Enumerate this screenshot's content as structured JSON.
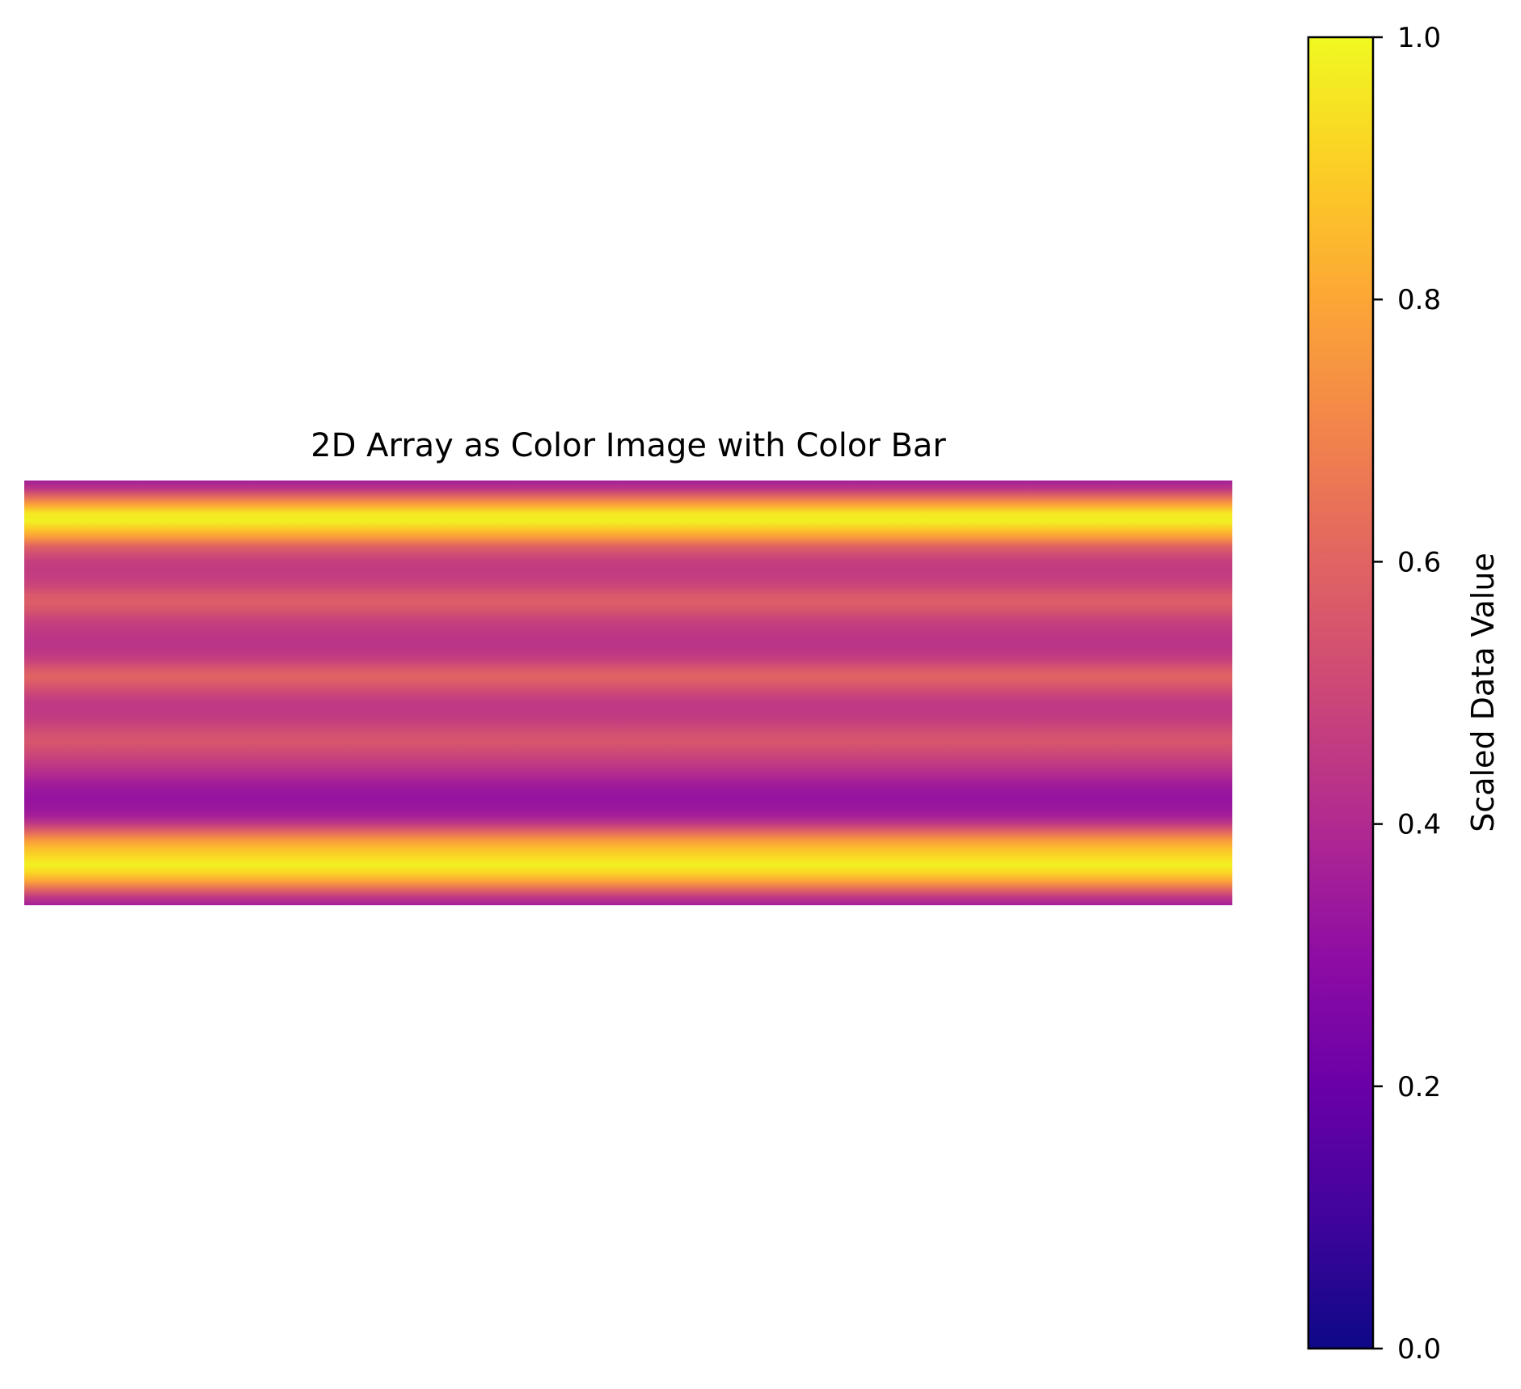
{
  "chart_data": {
    "type": "heatmap",
    "title": "2D Array as Color Image with Color Bar",
    "colormap": "plasma",
    "colormap_stops": [
      {
        "value": 0.0,
        "color": "#0d0887"
      },
      {
        "value": 0.1,
        "color": "#41049d"
      },
      {
        "value": 0.2,
        "color": "#6a00a8"
      },
      {
        "value": 0.3,
        "color": "#8f0da4"
      },
      {
        "value": 0.4,
        "color": "#b12a90"
      },
      {
        "value": 0.5,
        "color": "#cc4778"
      },
      {
        "value": 0.6,
        "color": "#e16462"
      },
      {
        "value": 0.7,
        "color": "#f2844b"
      },
      {
        "value": 0.8,
        "color": "#fca636"
      },
      {
        "value": 0.9,
        "color": "#fcce25"
      },
      {
        "value": 1.0,
        "color": "#f0f921"
      }
    ],
    "value_range": [
      0,
      1
    ],
    "row_values": [
      0.36,
      0.44,
      0.62,
      0.8,
      0.96,
      0.98,
      0.88,
      0.76,
      0.6,
      0.52,
      0.47,
      0.46,
      0.47,
      0.5,
      0.56,
      0.58,
      0.54,
      0.49,
      0.46,
      0.44,
      0.43,
      0.44,
      0.48,
      0.55,
      0.6,
      0.56,
      0.5,
      0.46,
      0.45,
      0.46,
      0.49,
      0.53,
      0.55,
      0.52,
      0.48,
      0.44,
      0.4,
      0.36,
      0.33,
      0.32,
      0.33,
      0.36,
      0.45,
      0.6,
      0.76,
      0.86,
      0.92,
      0.98,
      0.92,
      0.8,
      0.62,
      0.45,
      0.36
    ],
    "colorbar": {
      "label": "Scaled Data Value",
      "ticks": [
        0.0,
        0.2,
        0.4,
        0.6,
        0.8,
        1.0
      ],
      "tick_labels": [
        "0.0",
        "0.2",
        "0.4",
        "0.6",
        "0.8",
        "1.0"
      ]
    },
    "axes_visible": false,
    "grid": false
  }
}
